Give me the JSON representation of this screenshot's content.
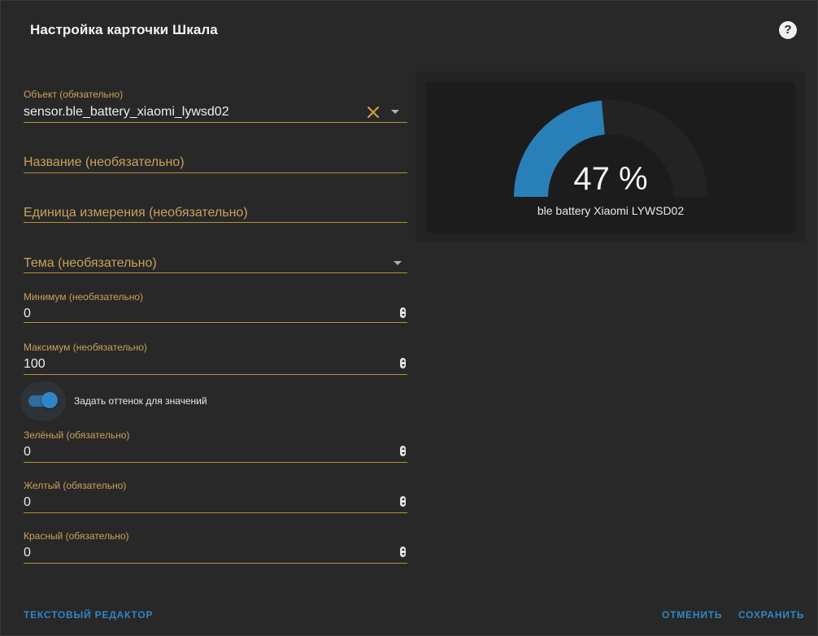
{
  "dialog": {
    "title": "Настройка карточки Шкала",
    "help_icon": "help-circle-icon"
  },
  "form": {
    "entity": {
      "label": "Объект (обязательно)",
      "value": "sensor.ble_battery_xiaomi_lywsd02"
    },
    "name": {
      "placeholder": "Название (необязательно)"
    },
    "unit": {
      "placeholder": "Единица измерения (необязательно)"
    },
    "theme": {
      "placeholder": "Тема (необязательно)"
    },
    "minimum": {
      "label": "Минимум (необязательно)",
      "value": "0"
    },
    "maximum": {
      "label": "Максимум (необязательно)",
      "value": "100"
    },
    "severity_toggle": {
      "label": "Задать оттенок для значений",
      "on": true
    },
    "green": {
      "label": "Зелёный (обязательно)",
      "value": "0"
    },
    "yellow": {
      "label": "Желтый (обязательно)",
      "value": "0"
    },
    "red": {
      "label": "Красный (обязательно)",
      "value": "0"
    }
  },
  "preview": {
    "gauge": {
      "value_text": "47 %",
      "name": "ble battery Xiaomi LYWSD02",
      "level": 47,
      "min": 0,
      "max": 100,
      "fill_color": "#2980b9",
      "track_color": "#232323"
    }
  },
  "footer": {
    "code_editor": "ТЕКСТОВЫЙ РЕДАКТОР",
    "cancel": "ОТМЕНИТЬ",
    "save": "СОХРАНИТЬ"
  },
  "colors": {
    "accent": "#2f86c6",
    "field_label": "#c9a25a",
    "underline": "#b98f3a",
    "clear_icon": "#d4a441"
  }
}
